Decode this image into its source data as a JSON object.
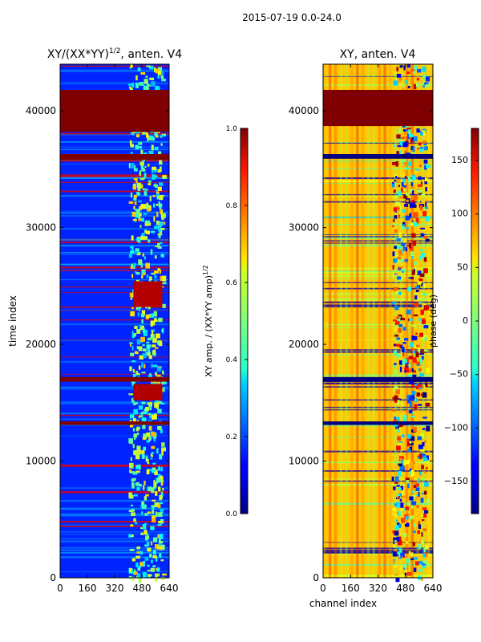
{
  "figure_title": "2015-07-19 0.0-24.0",
  "colors": {
    "background": "#ffffff",
    "axis": "#000000",
    "dark_red": "#800000",
    "dark_blue": "#00008f",
    "mid_blue": "#0a22e6",
    "cyan": "#30e0e8",
    "yellow": "#ffd400",
    "orange": "#ff8a00"
  },
  "chart_data": [
    {
      "type": "heatmap",
      "title": "XY/(XX*YY)",
      "title_superscript": "1/2",
      "title_suffix": ", anten. V4",
      "xlabel": "",
      "ylabel": "time index",
      "xlim": [
        0,
        640
      ],
      "ylim": [
        0,
        44000
      ],
      "xticks": [
        0,
        160,
        320,
        480,
        640
      ],
      "yticks": [
        0,
        10000,
        20000,
        30000,
        40000
      ],
      "colormap": "jet",
      "colorbar": {
        "label": "XY amp. / (XX*YY amp)",
        "label_superscript": "1/2",
        "range": [
          0.0,
          1.0
        ],
        "ticks": [
          "0.0",
          "0.2",
          "0.4",
          "0.6",
          "0.8",
          "1.0"
        ]
      },
      "features": [
        {
          "kind": "saturated_band",
          "start": 38200,
          "end": 41800,
          "value": 1.0
        },
        {
          "kind": "saturated_band",
          "start": 35800,
          "end": 36300,
          "value": 1.0
        },
        {
          "kind": "saturated_band",
          "start": 16800,
          "end": 17200,
          "value": 1.0
        },
        {
          "kind": "saturated_band",
          "start": 13100,
          "end": 13400,
          "value": 1.0
        },
        {
          "kind": "high_block",
          "start": 23200,
          "end": 25400,
          "value": 0.95
        },
        {
          "kind": "high_block",
          "start": 15200,
          "end": 16600,
          "value": 0.95
        }
      ]
    },
    {
      "type": "heatmap",
      "title": "XY, anten. V4",
      "xlabel": "channel index",
      "ylabel": "",
      "xlim": [
        0,
        640
      ],
      "ylim": [
        0,
        44000
      ],
      "xticks": [
        0,
        160,
        320,
        480,
        640
      ],
      "yticks": [
        0,
        10000,
        20000,
        30000,
        40000
      ],
      "colormap": "jet",
      "colorbar": {
        "label": "phase (deg)",
        "range": [
          -180,
          180
        ],
        "ticks": [
          "−150",
          "−100",
          "−50",
          "0",
          "50",
          "100",
          "150"
        ]
      },
      "features": [
        {
          "kind": "saturated_band",
          "start": 38700,
          "end": 41800,
          "value": 180
        },
        {
          "kind": "low_band",
          "start": 35900,
          "end": 36300,
          "value": -180
        },
        {
          "kind": "low_band",
          "start": 16800,
          "end": 17200,
          "value": -180
        },
        {
          "kind": "low_band",
          "start": 13100,
          "end": 13400,
          "value": -180
        }
      ]
    }
  ]
}
